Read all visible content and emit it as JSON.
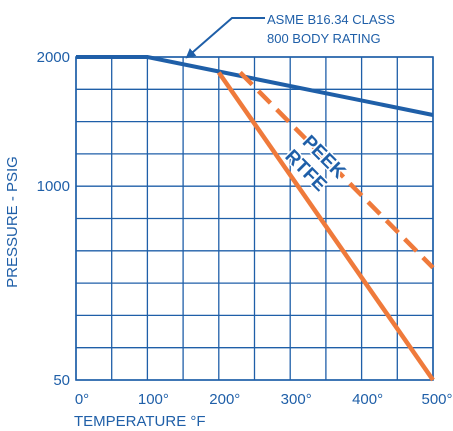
{
  "chart_data": {
    "type": "line",
    "title": "",
    "xlabel": "TEMPERATURE °F",
    "ylabel": "PRESSURE - PSIG",
    "xlim": [
      0,
      500
    ],
    "ylim": [
      50,
      2000
    ],
    "y_scale": "nonlinear",
    "grid": true,
    "legend": "none",
    "x_ticks": [
      "0°",
      "100°",
      "200°",
      "300°",
      "400°",
      "500°"
    ],
    "y_ticks": [
      "50",
      "1000",
      "2000"
    ],
    "series": [
      {
        "name": "ASME B16.34 CLASS 800 BODY RATING",
        "style": "solid",
        "color": "#1f5fa8",
        "points": [
          [
            0,
            2000
          ],
          [
            100,
            2000
          ],
          [
            500,
            1550
          ]
        ]
      },
      {
        "name": "PEEK",
        "style": "dashed",
        "color": "#ef7a3b",
        "points": [
          [
            230,
            1880
          ],
          [
            500,
            600
          ]
        ]
      },
      {
        "name": "RTFE",
        "style": "solid",
        "color": "#ef7a3b",
        "points": [
          [
            200,
            1880
          ],
          [
            500,
            50
          ]
        ]
      }
    ],
    "annotations": [
      {
        "text_lines": [
          "ASME B16.34 CLASS",
          "800 BODY RATING"
        ],
        "points_to": [
          150,
          1960
        ]
      }
    ],
    "colors": {
      "axis": "#1f5fa8",
      "grid": "#1f5fa8",
      "body_rating": "#1f5fa8",
      "seat": "#ef7a3b"
    }
  }
}
